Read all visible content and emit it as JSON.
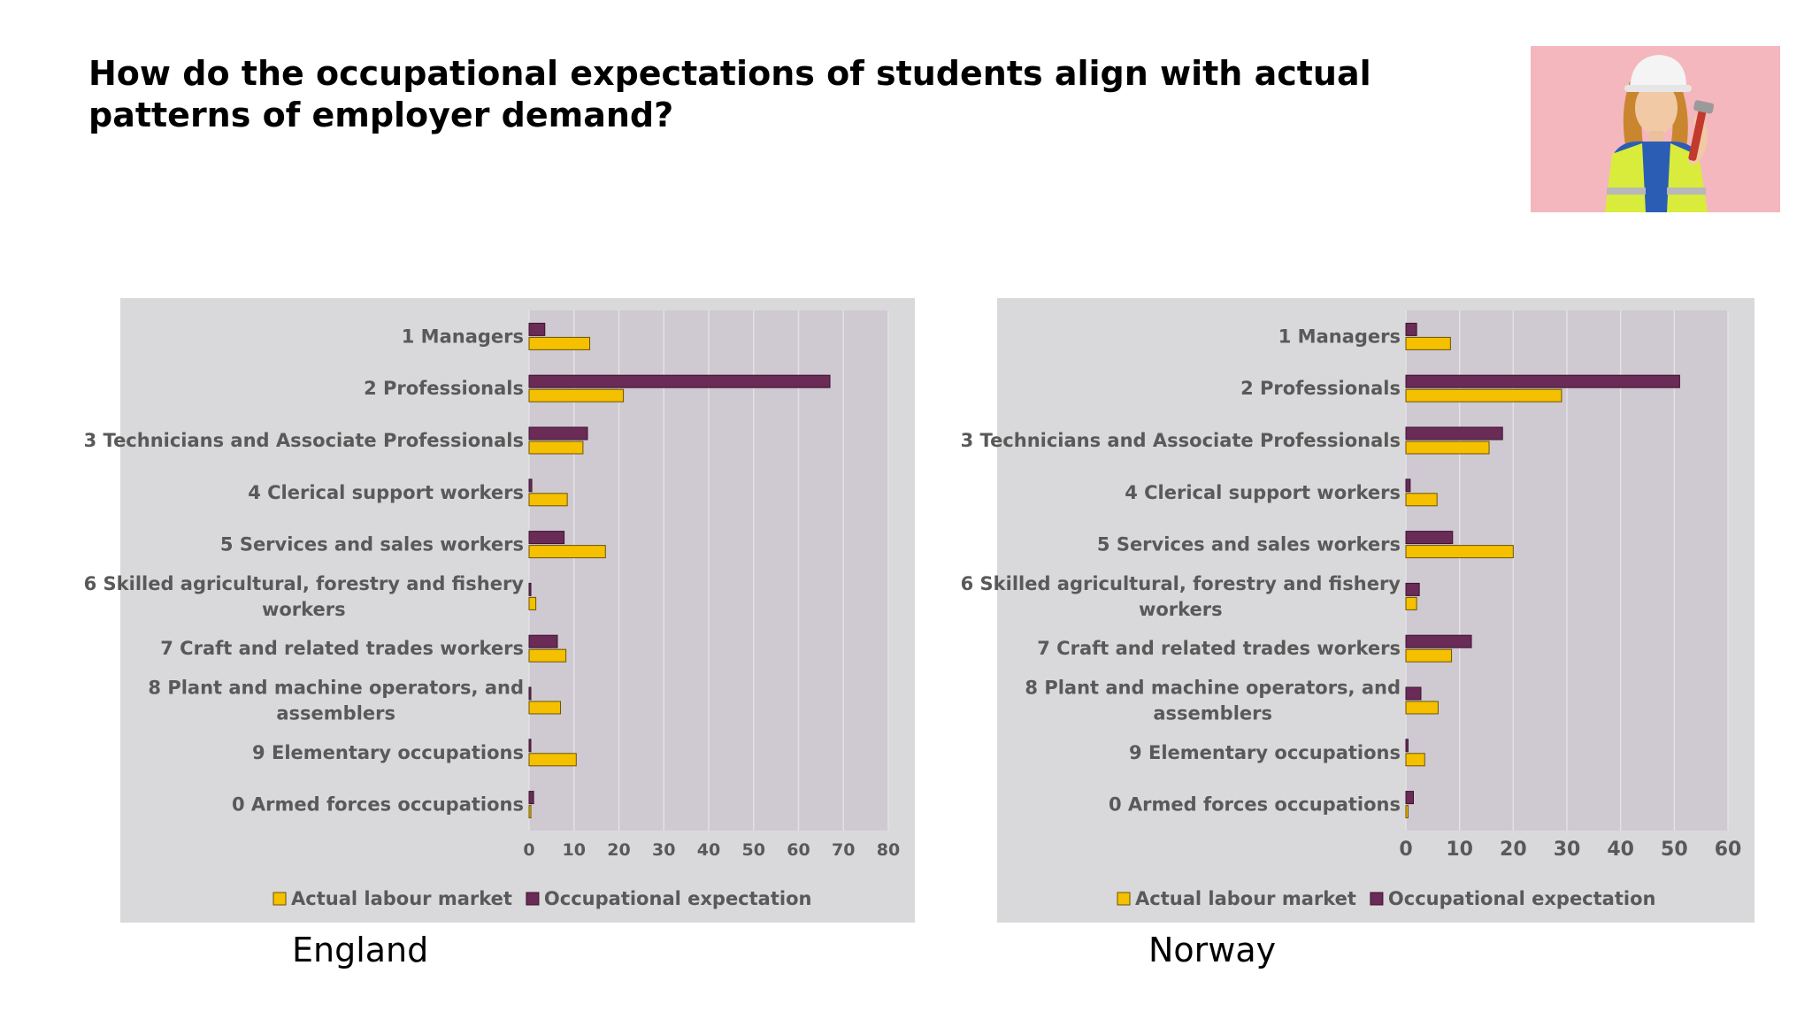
{
  "slide": {
    "title": "How do the occupational expectations of students align with actual patterns of employer demand?",
    "photo_icon": "girl-construction-worker-photo"
  },
  "colors": {
    "actual": "#f5c000",
    "expectation": "#6a2b57",
    "plot_bg": "#cfc9d1",
    "panel_bg": "#d9d8da"
  },
  "chart_data": [
    {
      "type": "bar",
      "orientation": "horizontal",
      "caption": "England",
      "categories": [
        [
          "1 Managers"
        ],
        [
          "2 Professionals"
        ],
        [
          "3 Technicians and Associate Professionals"
        ],
        [
          "4 Clerical support workers"
        ],
        [
          "5 Services and sales workers"
        ],
        [
          "6 Skilled agricultural, forestry and fishery",
          "workers"
        ],
        [
          "7 Craft and related trades workers"
        ],
        [
          "8  Plant and machine operators, and",
          "assemblers"
        ],
        [
          "9 Elementary occupations"
        ],
        [
          "0 Armed forces occupations"
        ]
      ],
      "series": [
        {
          "name": "Actual labour market",
          "values": [
            13.5,
            21,
            12,
            8.5,
            17,
            1.5,
            8.2,
            7,
            10.5,
            0.4
          ]
        },
        {
          "name": "Occupational expectation",
          "values": [
            3.5,
            67,
            13,
            0.6,
            7.8,
            0.4,
            6.3,
            0.3,
            0.3,
            1
          ]
        }
      ],
      "xlim": [
        0,
        80
      ],
      "xticks": [
        0,
        10,
        20,
        30,
        40,
        50,
        60,
        70,
        80
      ],
      "grid": true,
      "legend": "bottom"
    },
    {
      "type": "bar",
      "orientation": "horizontal",
      "caption": "Norway",
      "categories": [
        [
          "1 Managers"
        ],
        [
          "2 Professionals"
        ],
        [
          "3 Technicians and Associate Professionals"
        ],
        [
          "4 Clerical support workers"
        ],
        [
          "5 Services and sales workers"
        ],
        [
          "6 Skilled agricultural, forestry and fishery",
          "workers"
        ],
        [
          "7 Craft and related trades workers"
        ],
        [
          "8  Plant and machine operators, and",
          "assemblers"
        ],
        [
          "9 Elementary occupations"
        ],
        [
          "0 Armed forces occupations"
        ]
      ],
      "series": [
        {
          "name": "Actual labour market",
          "values": [
            8.3,
            29,
            15.5,
            5.8,
            20,
            2,
            8.5,
            6,
            3.5,
            0.4
          ]
        },
        {
          "name": "Occupational expectation",
          "values": [
            2,
            51,
            18,
            0.8,
            8.7,
            2.5,
            12.2,
            2.8,
            0.4,
            1.4
          ]
        }
      ],
      "xlim": [
        0,
        60
      ],
      "xticks": [
        0,
        10,
        20,
        30,
        40,
        50,
        60
      ],
      "grid": true,
      "legend": "bottom"
    }
  ]
}
